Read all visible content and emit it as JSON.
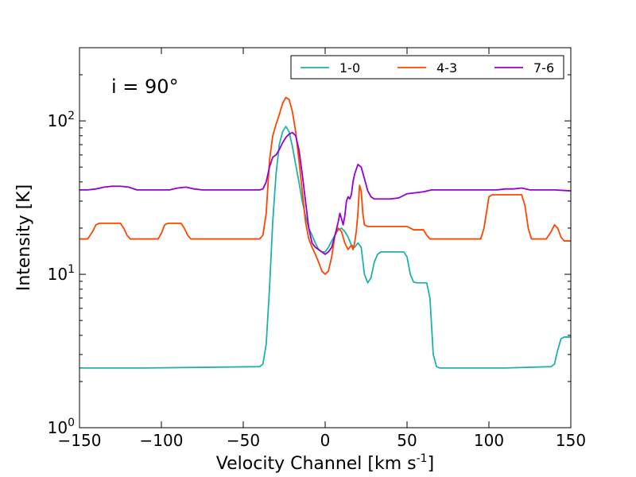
{
  "chart_data": {
    "type": "line",
    "title": "",
    "xlabel": "Velocity Channel [km s",
    "xlabel_sup": "-1",
    "xlabel_tail": "]",
    "ylabel": "Intensity [K]",
    "xlim": [
      -150,
      150
    ],
    "ylim": [
      1,
      300
    ],
    "yscale": "log",
    "grid": false,
    "legend_position": "top-right",
    "annotation": "i = 90°",
    "x_ticks": [
      -150,
      -100,
      -50,
      0,
      50,
      100,
      150
    ],
    "x_tick_labels": [
      "−150",
      "−100",
      "−50",
      "0",
      "50",
      "100",
      "150"
    ],
    "y_ticks": [
      1,
      10,
      100
    ],
    "y_tick_base": "10",
    "y_tick_exponents": [
      "0",
      "1",
      "2"
    ],
    "series": [
      {
        "name": "1-0",
        "color": "#20b2aa",
        "x": [
          -150,
          -110,
          -40,
          -38,
          -36,
          -34,
          -32,
          -30,
          -28,
          -26,
          -24,
          -22,
          -20,
          -18,
          -16,
          -14,
          -12,
          -10,
          -8,
          -6,
          -4,
          -2,
          0,
          2,
          4,
          6,
          8,
          10,
          12,
          14,
          16,
          18,
          20,
          22,
          24,
          26,
          28,
          30,
          32,
          34,
          40,
          48,
          50,
          52,
          54,
          56,
          62,
          64,
          66,
          68,
          70,
          100,
          110,
          138,
          140,
          142,
          144,
          146,
          150
        ],
        "y": [
          2.45,
          2.45,
          2.5,
          2.6,
          3.5,
          8,
          22,
          45,
          70,
          85,
          92,
          85,
          68,
          52,
          40,
          30,
          24,
          20,
          18,
          16,
          14.5,
          14,
          14,
          15,
          16.5,
          18,
          19.5,
          20,
          19,
          17.5,
          15.5,
          15,
          16,
          15,
          10,
          8.8,
          9.5,
          12,
          13.5,
          14,
          14,
          14,
          13,
          10,
          8.9,
          8.8,
          8.8,
          7,
          3,
          2.5,
          2.45,
          2.45,
          2.45,
          2.5,
          2.6,
          3.2,
          3.8,
          3.9,
          3.9
        ]
      },
      {
        "name": "4-3",
        "color": "#ff4500",
        "x": [
          -150,
          -145,
          -142,
          -140,
          -138,
          -125,
          -123,
          -121,
          -119,
          -110,
          -102,
          -100,
          -98,
          -96,
          -88,
          -86,
          -84,
          -82,
          -80,
          -40,
          -38,
          -36,
          -34,
          -32,
          -30,
          -28,
          -26,
          -24,
          -22,
          -20,
          -18,
          -16,
          -14,
          -12,
          -10,
          -8,
          -6,
          -4,
          -2,
          0,
          2,
          4,
          6,
          8,
          10,
          12,
          14,
          16,
          17,
          18,
          19,
          20,
          21,
          22,
          23,
          24,
          26,
          28,
          30,
          50,
          52,
          54,
          56,
          60,
          62,
          64,
          66,
          68,
          95,
          97,
          100,
          102,
          110,
          115,
          120,
          122,
          124,
          126,
          130,
          135,
          138,
          140,
          142,
          144,
          146,
          150
        ],
        "y": [
          17,
          17,
          19,
          21,
          21.5,
          21.5,
          20,
          18,
          17,
          17,
          17,
          18.5,
          21,
          21.5,
          21.5,
          20,
          18,
          17,
          17,
          17,
          18,
          25,
          55,
          80,
          95,
          110,
          130,
          142,
          138,
          115,
          85,
          55,
          35,
          22,
          17,
          15,
          13.5,
          12,
          10.5,
          10,
          10.5,
          13,
          18,
          20,
          19,
          16,
          14.5,
          15.5,
          14.5,
          16,
          19,
          25,
          38,
          35,
          25,
          21,
          20.5,
          20.5,
          20.5,
          20.5,
          20,
          19.5,
          19.5,
          19.5,
          18,
          17,
          17,
          17,
          17,
          20,
          32,
          33,
          33,
          33,
          33,
          28,
          20,
          17,
          17,
          17,
          19,
          21,
          20,
          17.5,
          16.5,
          16.5
        ]
      },
      {
        "name": "7-6",
        "color": "#9400d3",
        "x": [
          -150,
          -145,
          -140,
          -135,
          -130,
          -125,
          -120,
          -115,
          -110,
          -100,
          -95,
          -90,
          -85,
          -80,
          -75,
          -40,
          -38,
          -36,
          -34,
          -32,
          -30,
          -28,
          -26,
          -24,
          -22,
          -20,
          -18,
          -16,
          -14,
          -12,
          -10,
          -8,
          -6,
          -4,
          -2,
          0,
          2,
          4,
          6,
          8,
          9,
          10,
          11,
          12,
          13,
          14,
          15,
          16,
          17,
          18,
          20,
          22,
          24,
          26,
          28,
          30,
          34,
          40,
          45,
          50,
          55,
          60,
          65,
          95,
          100,
          105,
          110,
          115,
          120,
          125,
          130,
          140,
          150
        ],
        "y": [
          35.5,
          35.5,
          36,
          37,
          37.5,
          37.5,
          37,
          35.5,
          35.5,
          35.5,
          35.5,
          36.5,
          37,
          36,
          35.5,
          35.5,
          36,
          40,
          50,
          58,
          60,
          65,
          72,
          78,
          82,
          84,
          80,
          65,
          45,
          30,
          20,
          16,
          15,
          14.5,
          14,
          13.5,
          14,
          15,
          18,
          22,
          25,
          23,
          21,
          24,
          30,
          32,
          31,
          33,
          40,
          45,
          52,
          50,
          42,
          35,
          32,
          31,
          31,
          31,
          31.5,
          33.5,
          34,
          34.5,
          35.5,
          35.5,
          35.5,
          35.5,
          36,
          36,
          36.5,
          35.5,
          35.5,
          35.5,
          35
        ]
      }
    ]
  }
}
